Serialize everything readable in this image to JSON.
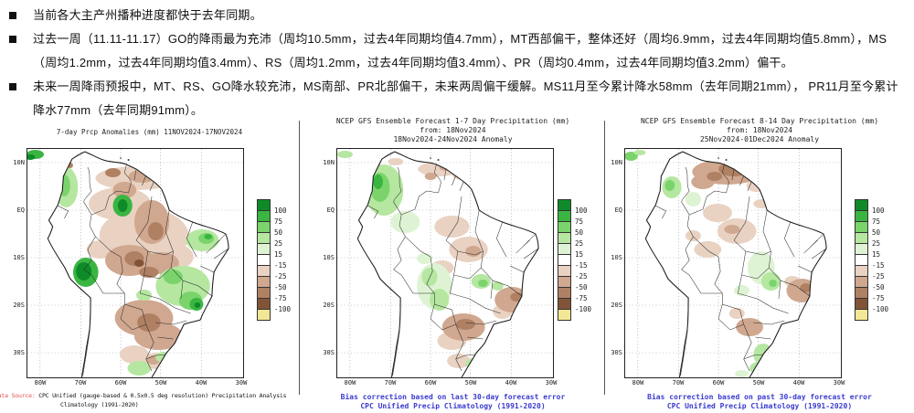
{
  "bullets": {
    "items": [
      "当前各大主产州播种进度都快于去年同期。",
      "过去一周（11.11-11.17）GO的降雨最为充沛（周均10.5mm，过去4年同期均值4.7mm），MT西部偏干，整体还好（周均6.9mm，过去4年同期均值5.8mm），MS（周均1.2mm，过去4年同期均值3.4mm）、RS（周均1.2mm，过去4年同期均值3.4mm）、PR（周均0.4mm，过去4年同期均值3.2mm）偏干。",
      "未来一周降雨预报中，MT、RS、GO降水较充沛，MS南部、PR北部偏干，未来两周偏干缓解。MS11月至今累计降水58mm（去年同期21mm）， PR11月至今累计降水77mm（去年同期91mm）。"
    ]
  },
  "axis": {
    "lat": [
      "10N",
      "EQ",
      "10S",
      "20S",
      "30S"
    ],
    "lon": [
      "80W",
      "70W",
      "60W",
      "50W",
      "40W",
      "30W"
    ]
  },
  "colorbar": {
    "labels": [
      "100",
      "75",
      "50",
      "25",
      "15",
      "-15",
      "-25",
      "-50",
      "-75",
      "-100"
    ],
    "colors": [
      "#0e8b28",
      "#3ab542",
      "#7ad46b",
      "#b5e7a1",
      "#def3d3",
      "#ffffff",
      "#e9d2c2",
      "#d0a78f",
      "#b08063",
      "#815438",
      "#f2e795"
    ]
  },
  "maps": [
    {
      "title1": "7-day Prcp Anomalies (mm) 11NOV2024-17NOV2024",
      "footer_prefix": "Data Source:",
      "footer_line1": "CPC Unified (gauge-based & 0.5x0.5 deg resolution) Precipitation Analysis",
      "footer_line2": "Climatology (1991-2020)"
    },
    {
      "title1": "NCEP GFS Ensemble Forecast 1-7 Day Precipitation (mm)",
      "title2": "from: 18Nov2024",
      "title3": "18Nov2024-24Nov2024 Anomaly",
      "footer_line1": "Bias correction based on last 30-day forecast error",
      "footer_line2": "CPC Unified Precip Climatology (1991-2020)"
    },
    {
      "title1": "NCEP GFS Ensemble Forecast 8-14 Day Precipitation (mm)",
      "title2": "from: 18Nov2024",
      "title3": "25Nov2024-01Dec2024 Anomaly",
      "footer_line1": "Bias correction based on past 30-day forecast error",
      "footer_line2": "CPC Unified Precip Climatology (1991-2020)"
    }
  ]
}
